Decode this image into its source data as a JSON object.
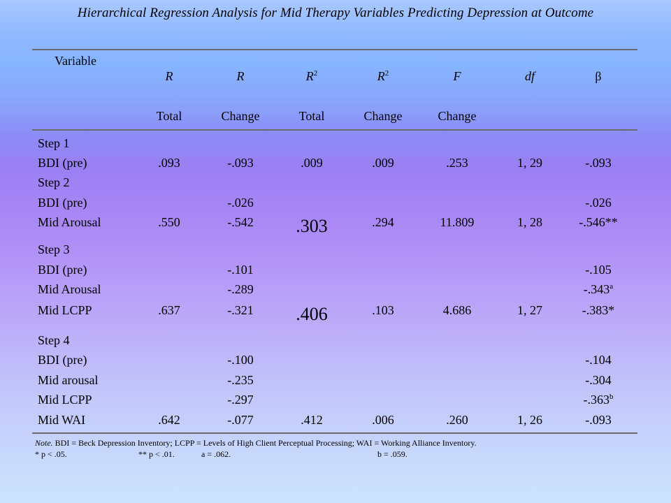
{
  "title": "Hierarchical Regression Analysis for Mid Therapy Variables Predicting Depression at Outcome",
  "header": {
    "variable": "Variable",
    "r_total": {
      "top": "R",
      "bottom": "Total"
    },
    "r_change": {
      "top": "R",
      "bottom": "Change"
    },
    "r2_total": {
      "top": "R",
      "sup": "2",
      "bottom": "Total"
    },
    "r2_change": {
      "top": "R",
      "sup": "2",
      "bottom": "Change"
    },
    "f_change": {
      "top": "F",
      "bottom": "Change"
    },
    "df": "df",
    "beta": "β"
  },
  "steps": {
    "step1": {
      "label": "Step 1",
      "rows": [
        {
          "variable": "BDI (pre)",
          "r_total": ".093",
          "r_change": "-.093",
          "r2_total": ".009",
          "r2_change": ".009",
          "f_change": ".253",
          "df": "1, 29",
          "beta": "-.093"
        }
      ]
    },
    "step2": {
      "label": "Step 2",
      "r2_total": ".303",
      "rows": [
        {
          "variable": "BDI (pre)",
          "r_change": "-.026",
          "beta": "-.026"
        },
        {
          "variable": "Mid Arousal",
          "r_total": ".550",
          "r_change": "-.542",
          "r2_change": ".294",
          "f_change": "11.809",
          "df": "1, 28",
          "beta": "-.546**"
        }
      ]
    },
    "step3": {
      "label": "Step 3",
      "r2_total": ".406",
      "rows": [
        {
          "variable": "BDI (pre)",
          "r_change": "-.101",
          "beta": "-.105"
        },
        {
          "variable": "Mid Arousal",
          "r_change": "-.289",
          "beta": "-.343",
          "beta_sup": "a"
        },
        {
          "variable": "Mid LCPP",
          "r_total": ".637",
          "r_change": "-.321",
          "r2_change": ".103",
          "f_change": "4.686",
          "df": "1, 27",
          "beta": "-.383*"
        }
      ]
    },
    "step4": {
      "label": "Step 4",
      "rows": [
        {
          "variable": "BDI (pre)",
          "r_change": "-.100",
          "beta": "-.104"
        },
        {
          "variable": "Mid arousal",
          "r_change": "-.235",
          "beta": "-.304"
        },
        {
          "variable": "Mid LCPP",
          "r_change": "-.297",
          "beta": "-.363",
          "beta_sup": "b"
        },
        {
          "variable": "Mid WAI",
          "r_total": ".642",
          "r_change": "-.077",
          "r2_total": ".412",
          "r2_change": ".006",
          "f_change": ".260",
          "df": "1, 26",
          "beta": "-.093"
        }
      ]
    }
  },
  "note": {
    "prefix": "Note.",
    "line1": " BDI = Beck Depression Inventory; LCPP = Levels of High Client Perceptual Processing; WAI = Working Alliance Inventory.",
    "sig1": "* p < .05.",
    "sig2": "** p < .01.",
    "a_label": "a = .062.",
    "b_label": "b = .059."
  }
}
